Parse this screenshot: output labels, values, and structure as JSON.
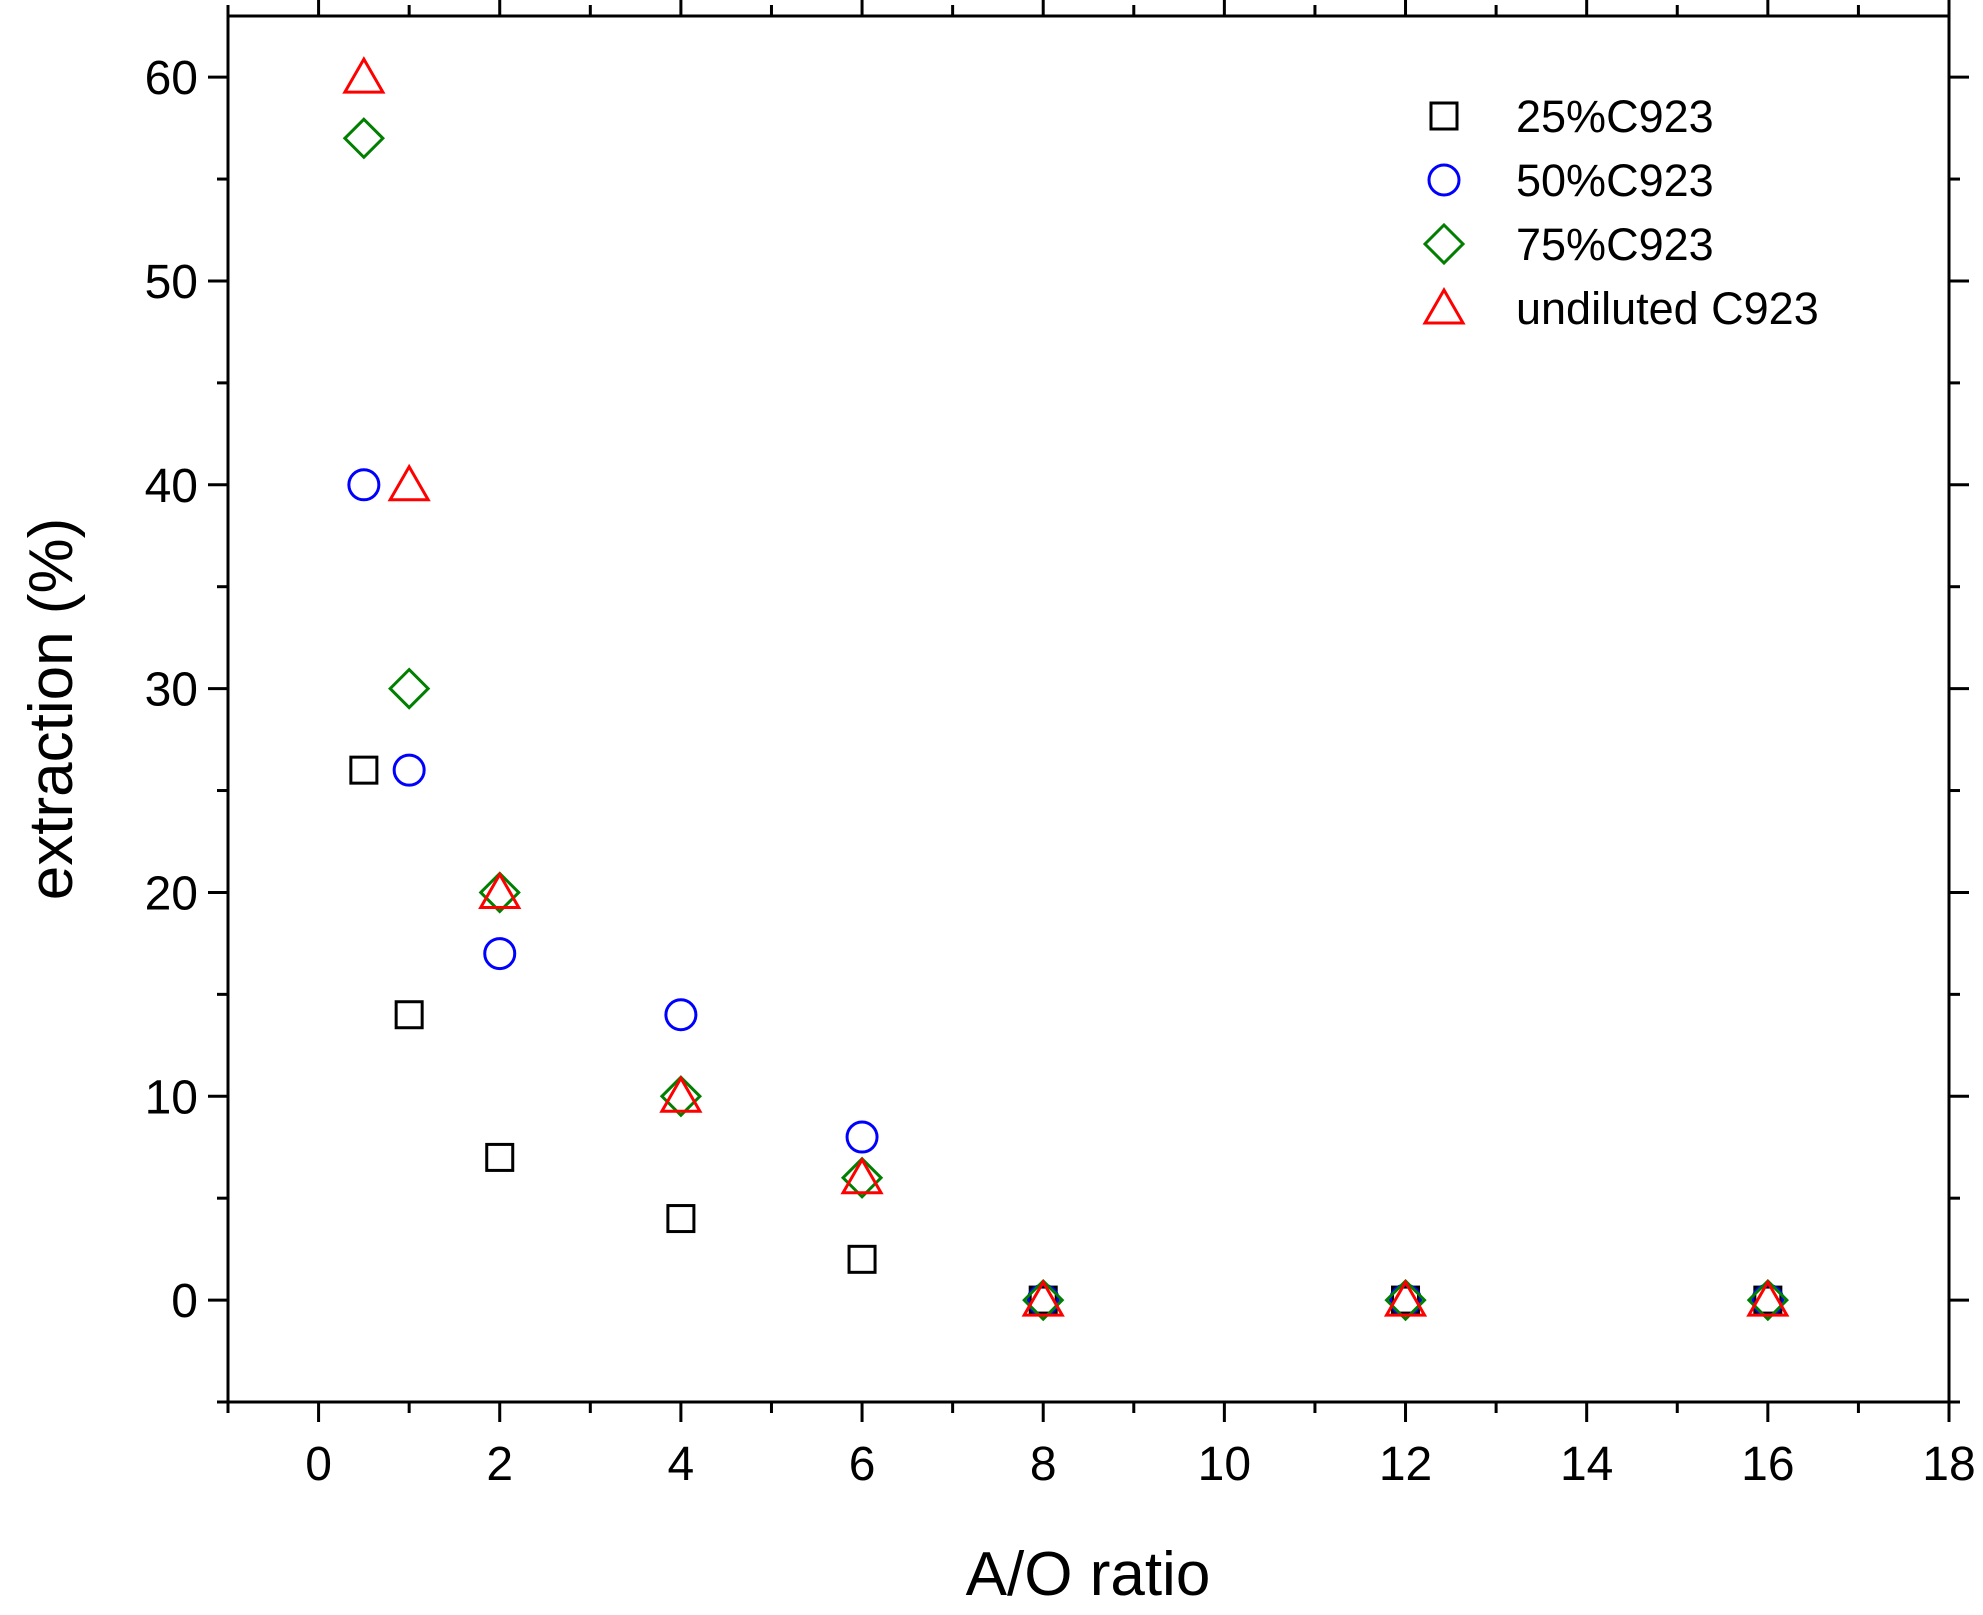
{
  "chart_data": {
    "type": "scatter",
    "title": "",
    "xlabel": "A/O ratio",
    "ylabel": "extraction (%)",
    "xlim": [
      -1,
      18
    ],
    "ylim": [
      -5,
      63
    ],
    "xticks": [
      0,
      2,
      4,
      6,
      8,
      10,
      12,
      14,
      16,
      18
    ],
    "yticks": [
      0,
      10,
      20,
      30,
      40,
      50,
      60
    ],
    "grid": false,
    "legend_position": "top-right",
    "series": [
      {
        "name": "25%C923",
        "marker": "square",
        "color": "#000000",
        "x": [
          0.5,
          1,
          2,
          4,
          6,
          8,
          12,
          16
        ],
        "y": [
          26,
          14,
          7,
          4,
          2,
          0,
          0,
          0
        ]
      },
      {
        "name": "50%C923",
        "marker": "circle",
        "color": "#0000ff",
        "x": [
          0.5,
          1,
          2,
          4,
          6,
          8,
          12,
          16
        ],
        "y": [
          40,
          26,
          17,
          14,
          8,
          0,
          0,
          0
        ]
      },
      {
        "name": "75%C923",
        "marker": "diamond",
        "color": "#007f00",
        "x": [
          0.5,
          1,
          2,
          4,
          6,
          8,
          12,
          16
        ],
        "y": [
          57,
          30,
          20,
          10,
          6,
          0,
          0,
          0
        ]
      },
      {
        "name": "undiluted C923",
        "marker": "triangle",
        "color": "#ff0000",
        "x": [
          0.5,
          1,
          2,
          4,
          6,
          8,
          12,
          16
        ],
        "y": [
          60,
          40,
          20,
          10,
          6,
          0,
          0,
          0
        ]
      }
    ]
  }
}
